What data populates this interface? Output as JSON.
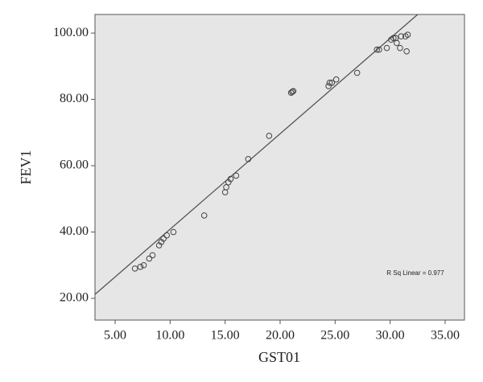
{
  "chart_data": {
    "type": "scatter",
    "x_label": "GST01",
    "y_label": "FEV1",
    "annotation": "R Sq Linear = 0.977",
    "xlim": [
      3.17,
      36.76
    ],
    "ylim": [
      13.45,
      105.6
    ],
    "xticks": [
      {
        "value": 5,
        "label": "5.00"
      },
      {
        "value": 10,
        "label": "10.00"
      },
      {
        "value": 15,
        "label": "15.00"
      },
      {
        "value": 20,
        "label": "20.00"
      },
      {
        "value": 25,
        "label": "25.00"
      },
      {
        "value": 30,
        "label": "30.00"
      },
      {
        "value": 35,
        "label": "35.00"
      }
    ],
    "yticks": [
      {
        "value": 20,
        "label": "20.00"
      },
      {
        "value": 40,
        "label": "40.00"
      },
      {
        "value": 60,
        "label": "60.00"
      },
      {
        "value": 80,
        "label": "80.00"
      },
      {
        "value": 100,
        "label": "100.00"
      }
    ],
    "color": "#444444",
    "background": "#e6e6e6",
    "x": [
      6.8,
      7.3,
      7.6,
      8.1,
      8.4,
      9.0,
      9.2,
      9.4,
      9.7,
      10.3,
      13.1,
      15.0,
      15.1,
      15.3,
      15.5,
      16.0,
      17.1,
      19.0,
      21.0,
      21.2,
      21.1,
      24.4,
      24.5,
      24.7,
      25.1,
      27.0,
      28.8,
      29.0,
      29.7,
      30.1,
      30.3,
      30.5,
      30.6,
      30.9,
      31.0,
      31.4,
      31.5,
      31.6
    ],
    "values": [
      29,
      29.5,
      30,
      32,
      33,
      36,
      37,
      38,
      39,
      40,
      45,
      52,
      53.5,
      55,
      56,
      57,
      62,
      69,
      82,
      82.5,
      82.3,
      84,
      85,
      85,
      86,
      88,
      95,
      95,
      95.5,
      98,
      98.5,
      98.5,
      97,
      95.5,
      99,
      99,
      94.5,
      99.5
    ],
    "trendline": {
      "x": [
        3.17,
        32.5
      ],
      "y": [
        21.2,
        105.6
      ],
      "color": "#555555"
    }
  }
}
